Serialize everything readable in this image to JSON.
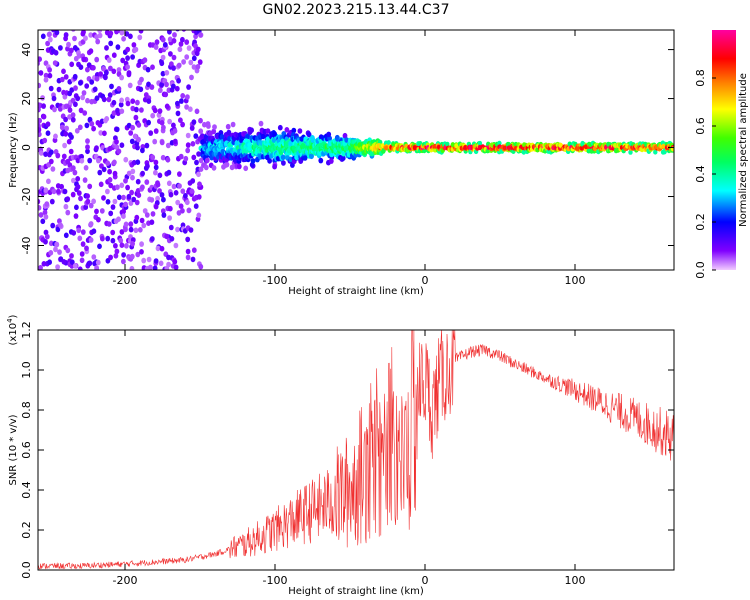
{
  "title": "GN02.2023.215.13.44.C37",
  "chart_data": [
    {
      "type": "heatmap",
      "xlabel": "Height of straight line (km)",
      "ylabel": "Frequency (Hz)",
      "xlim": [
        -258,
        166
      ],
      "ylim": [
        -50,
        48
      ],
      "xticks": [
        -200,
        -100,
        0,
        100
      ],
      "yticks": [
        -40,
        -20,
        0,
        20,
        40
      ],
      "description_points": [
        {
          "x": -250,
          "freq_spread": 48,
          "amp": 0.15
        },
        {
          "x": -150,
          "freq_spread": 12,
          "amp": 0.3
        },
        {
          "x": -100,
          "freq_spread": 10,
          "amp": 0.45
        },
        {
          "x": -50,
          "freq_spread": 6,
          "amp": 0.5
        },
        {
          "x": -20,
          "freq_spread": 2,
          "amp": 0.9
        },
        {
          "x": 0,
          "freq_spread": 2,
          "amp": 0.95
        },
        {
          "x": 100,
          "freq_spread": 2,
          "amp": 0.95
        },
        {
          "x": 166,
          "freq_spread": 2,
          "amp": 0.9
        }
      ],
      "colorbar": {
        "label": "Normalized spectral amplitude",
        "range": [
          0.0,
          1.0
        ],
        "ticks": [
          0.0,
          0.2,
          0.4,
          0.6,
          0.8
        ]
      }
    },
    {
      "type": "line",
      "xlabel": "Height of straight line (km)",
      "ylabel": "SNR (10 * v/v)",
      "ylabel_multiplier": "(x10",
      "ylabel_exponent": "4",
      "ylabel_multiplier_close": ")",
      "xlim": [
        -258,
        166
      ],
      "ylim": [
        0.0,
        1.2
      ],
      "xticks": [
        -200,
        -100,
        0,
        100
      ],
      "yticks": [
        0.0,
        0.2,
        0.4,
        0.6,
        0.8,
        1.0,
        1.2
      ],
      "color": "#f03030",
      "series": [
        {
          "name": "SNR",
          "x": [
            -258,
            -230,
            -200,
            -180,
            -160,
            -140,
            -120,
            -100,
            -80,
            -60,
            -50,
            -40,
            -30,
            -20,
            -15,
            -10,
            -5,
            0,
            5,
            10,
            20,
            30,
            40,
            50,
            60,
            80,
            100,
            120,
            140,
            166
          ],
          "y": [
            0.02,
            0.02,
            0.03,
            0.04,
            0.05,
            0.08,
            0.13,
            0.2,
            0.28,
            0.35,
            0.4,
            0.5,
            0.6,
            0.7,
            0.5,
            0.65,
            0.9,
            0.95,
            0.8,
            0.95,
            1.05,
            1.09,
            1.1,
            1.07,
            1.03,
            0.96,
            0.9,
            0.83,
            0.76,
            0.66
          ]
        }
      ]
    }
  ]
}
